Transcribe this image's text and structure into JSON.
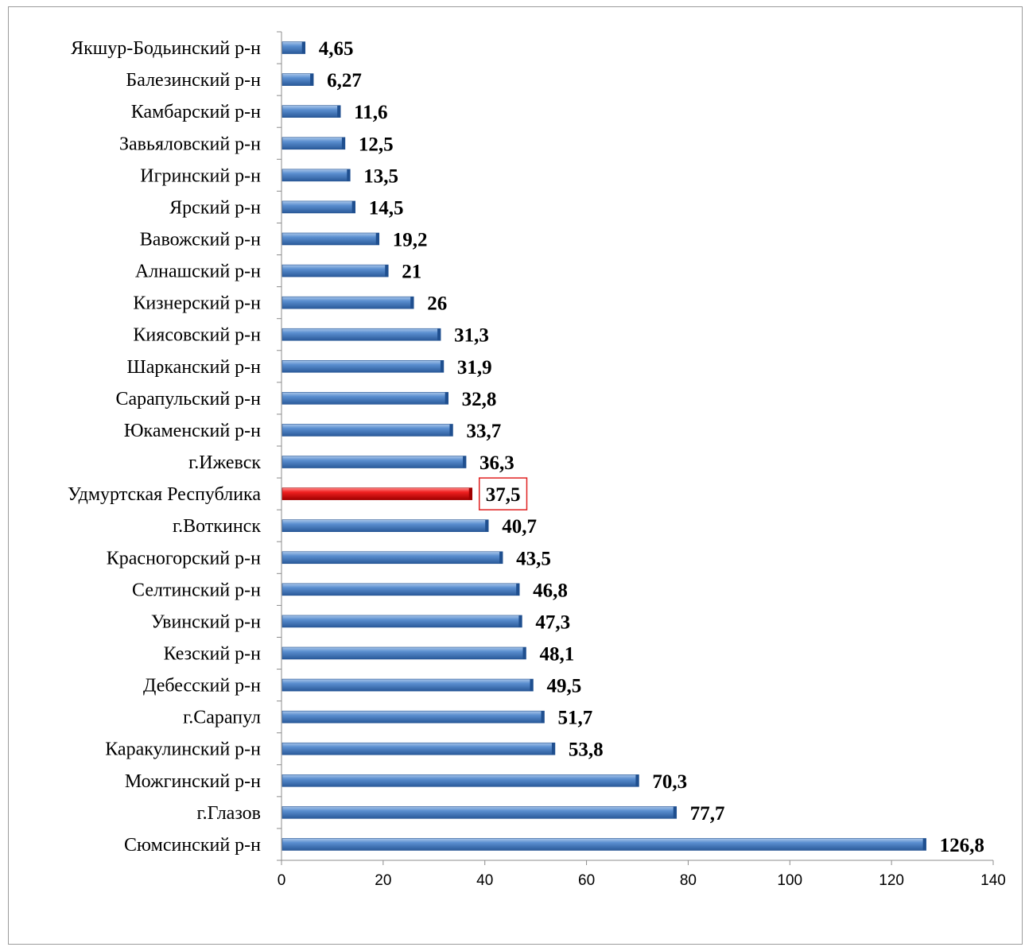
{
  "chart_data": {
    "type": "bar",
    "orientation": "horizontal",
    "categories": [
      "Якшур-Бодьинский р-н",
      "Балезинский р-н",
      "Камбарский р-н",
      "Завьяловский р-н",
      "Игринский р-н",
      "Ярский р-н",
      "Вавожский р-н",
      "Алнашский р-н",
      "Кизнерский р-н",
      "Киясовский р-н",
      "Шарканский р-н",
      "Сарапульский р-н",
      "Юкаменский р-н",
      "г.Ижевск",
      "Удмуртская Республика",
      "г.Воткинск",
      "Красногорский р-н",
      "Селтинский р-н",
      "Увинский р-н",
      "Кезский р-н",
      "Дебесский р-н",
      "г.Сарапул",
      "Каракулинский р-н",
      "Можгинский р-н",
      "г.Глазов",
      "Сюмсинский р-н"
    ],
    "values": [
      4.65,
      6.27,
      11.6,
      12.5,
      13.5,
      14.5,
      19.2,
      21,
      26,
      31.3,
      31.9,
      32.8,
      33.7,
      36.3,
      37.5,
      40.7,
      43.5,
      46.8,
      47.3,
      48.1,
      49.5,
      51.7,
      53.8,
      70.3,
      77.7,
      126.8
    ],
    "value_labels": [
      "4,65",
      "6,27",
      "11,6",
      "12,5",
      "13,5",
      "14,5",
      "19,2",
      "21",
      "26",
      "31,3",
      "31,9",
      "32,8",
      "33,7",
      "36,3",
      "37,5",
      "40,7",
      "43,5",
      "46,8",
      "47,3",
      "48,1",
      "49,5",
      "51,7",
      "53,8",
      "70,3",
      "77,7",
      "126,8"
    ],
    "highlight_category": "Удмуртская Республика",
    "xlim": [
      0,
      140
    ],
    "xticks": [
      0,
      20,
      40,
      60,
      80,
      100,
      120,
      140
    ],
    "title": "",
    "xlabel": "",
    "ylabel": "",
    "grid": false,
    "legend": "none",
    "colors": {
      "bar": "#4a7ebb",
      "bar_light": "#8eb4e3",
      "bar_dark": "#1f4f8f",
      "highlight": "#e02020",
      "highlight_light": "#ff7070",
      "highlight_dark": "#a00000",
      "highlight_box": "#e02020",
      "axis": "#8c8c8c"
    }
  }
}
